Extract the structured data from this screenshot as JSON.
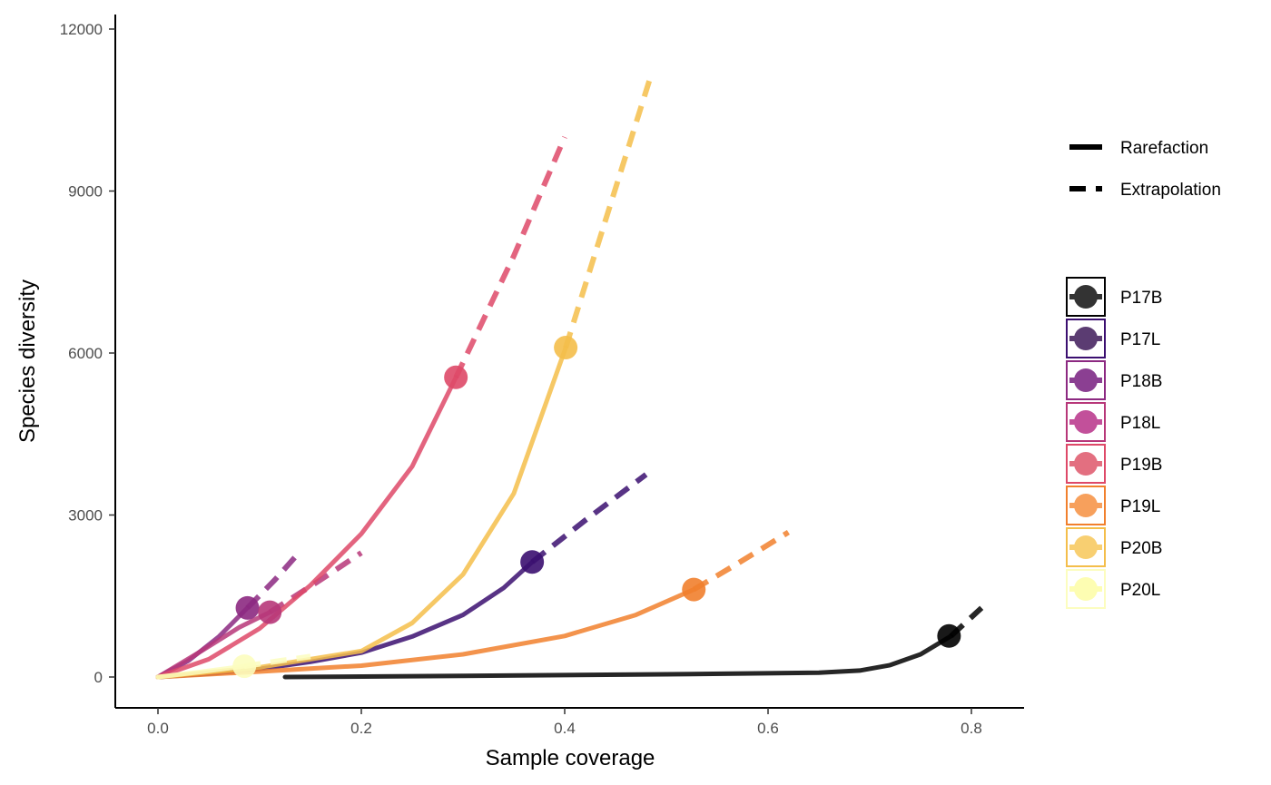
{
  "chart_data": {
    "type": "line",
    "xlabel": "Sample coverage",
    "ylabel": "Species diversity",
    "xlim": [
      -0.05,
      0.85
    ],
    "ylim": [
      -750,
      12350
    ],
    "x_ticks": [
      0.0,
      0.2,
      0.4,
      0.6,
      0.8
    ],
    "x_tick_labels": [
      "0.0",
      "0.2",
      "0.4",
      "0.6",
      "0.8"
    ],
    "y_ticks": [
      0,
      3000,
      6000,
      9000,
      12000
    ],
    "y_tick_labels": [
      "0",
      "3000",
      "6000",
      "9000",
      "12000"
    ],
    "grid": false,
    "legend_position": "right",
    "line_type_legend": [
      {
        "name": "Rarefaction",
        "style": "solid"
      },
      {
        "name": "Extrapolation",
        "style": "dashed"
      }
    ],
    "series": [
      {
        "name": "P17B",
        "color": "#000000",
        "marker_color": "#333333",
        "rarefaction": [
          [
            0.125,
            0
          ],
          [
            0.3,
            20
          ],
          [
            0.5,
            50
          ],
          [
            0.65,
            80
          ],
          [
            0.69,
            120
          ],
          [
            0.72,
            220
          ],
          [
            0.75,
            420
          ],
          [
            0.78,
            760
          ]
        ],
        "extrapolation": [
          [
            0.78,
            760
          ],
          [
            0.81,
            1280
          ]
        ],
        "observed": [
          0.778,
          760
        ]
      },
      {
        "name": "P17L",
        "color": "#3b0f70",
        "marker_color": "#5b3c72",
        "rarefaction": [
          [
            0.0,
            0
          ],
          [
            0.05,
            60
          ],
          [
            0.1,
            150
          ],
          [
            0.15,
            280
          ],
          [
            0.2,
            450
          ],
          [
            0.25,
            750
          ],
          [
            0.3,
            1150
          ],
          [
            0.34,
            1650
          ],
          [
            0.368,
            2130
          ]
        ],
        "extrapolation": [
          [
            0.368,
            2130
          ],
          [
            0.42,
            2900
          ],
          [
            0.48,
            3750
          ]
        ],
        "observed": [
          0.368,
          2130
        ]
      },
      {
        "name": "P18B",
        "color": "#8c2981",
        "marker_color": "#8b3f92",
        "rarefaction": [
          [
            0.0,
            0
          ],
          [
            0.03,
            300
          ],
          [
            0.06,
            750
          ],
          [
            0.088,
            1280
          ]
        ],
        "extrapolation": [
          [
            0.088,
            1280
          ],
          [
            0.115,
            1800
          ],
          [
            0.14,
            2330
          ]
        ],
        "observed": [
          0.088,
          1280
        ]
      },
      {
        "name": "P18L",
        "color": "#b73779",
        "marker_color": "#c2509a",
        "rarefaction": [
          [
            0.0,
            0
          ],
          [
            0.04,
            450
          ],
          [
            0.08,
            920
          ],
          [
            0.11,
            1200
          ]
        ],
        "extrapolation": [
          [
            0.11,
            1200
          ],
          [
            0.16,
            1800
          ],
          [
            0.2,
            2300
          ]
        ],
        "observed": [
          0.11,
          1200
        ]
      },
      {
        "name": "P19B",
        "color": "#de4968",
        "marker_color": "#e36f80",
        "rarefaction": [
          [
            0.0,
            0
          ],
          [
            0.05,
            330
          ],
          [
            0.1,
            900
          ],
          [
            0.15,
            1700
          ],
          [
            0.2,
            2650
          ],
          [
            0.25,
            3900
          ],
          [
            0.293,
            5550
          ]
        ],
        "extrapolation": [
          [
            0.293,
            5550
          ],
          [
            0.35,
            7800
          ],
          [
            0.4,
            10000
          ]
        ],
        "observed": [
          0.293,
          5550
        ]
      },
      {
        "name": "P19L",
        "color": "#f1802d",
        "marker_color": "#f7a05c",
        "rarefaction": [
          [
            0.0,
            0
          ],
          [
            0.1,
            100
          ],
          [
            0.2,
            210
          ],
          [
            0.3,
            420
          ],
          [
            0.4,
            760
          ],
          [
            0.47,
            1150
          ],
          [
            0.527,
            1620
          ]
        ],
        "extrapolation": [
          [
            0.527,
            1620
          ],
          [
            0.57,
            2100
          ],
          [
            0.62,
            2680
          ]
        ],
        "observed": [
          0.527,
          1620
        ]
      },
      {
        "name": "P20B",
        "color": "#f4be4a",
        "marker_color": "#f8cf71",
        "rarefaction": [
          [
            0.0,
            0
          ],
          [
            0.1,
            180
          ],
          [
            0.2,
            480
          ],
          [
            0.25,
            1000
          ],
          [
            0.3,
            1900
          ],
          [
            0.35,
            3400
          ],
          [
            0.401,
            6100
          ]
        ],
        "extrapolation": [
          [
            0.401,
            6100
          ],
          [
            0.44,
            8450
          ],
          [
            0.485,
            11150
          ]
        ],
        "observed": [
          0.401,
          6100
        ]
      },
      {
        "name": "P20L",
        "color": "#fcfdbf",
        "marker_color": "#fdfdb2",
        "rarefaction": [
          [
            0.0,
            0
          ],
          [
            0.04,
            90
          ],
          [
            0.085,
            200
          ]
        ],
        "extrapolation": [
          [
            0.085,
            200
          ],
          [
            0.12,
            300
          ],
          [
            0.15,
            380
          ]
        ],
        "observed": [
          0.085,
          200
        ]
      }
    ]
  }
}
